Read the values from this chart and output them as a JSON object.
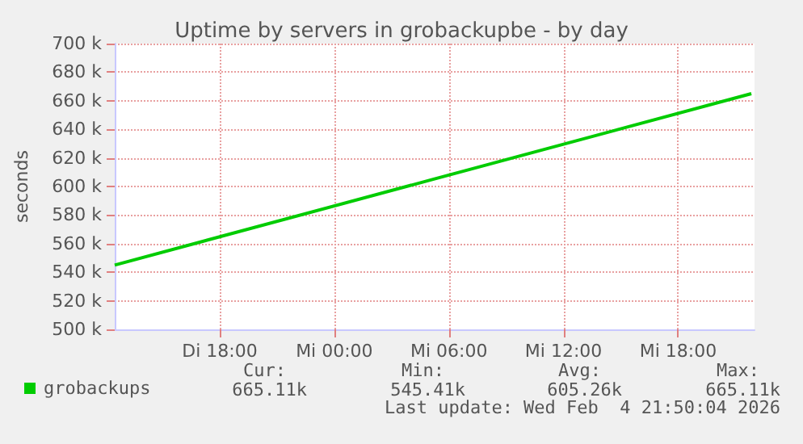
{
  "chart_data": {
    "type": "line",
    "title": "Uptime by servers in grobackupbe - by day",
    "ylabel": "seconds",
    "x": [
      "2026-02-03T12:30",
      "2026-02-04T05:10",
      "2026-02-04T21:50"
    ],
    "series": [
      {
        "name": "grobackups",
        "color": "#00cc00",
        "values": [
          545000,
          605000,
          665000
        ]
      }
    ],
    "xlim": [
      "2026-02-03T12:30",
      "2026-02-04T22:00"
    ],
    "xticks": [
      {
        "value": "2026-02-03T18:00",
        "label": "Di 18:00"
      },
      {
        "value": "2026-02-04T00:00",
        "label": "Mi 00:00"
      },
      {
        "value": "2026-02-04T06:00",
        "label": "Mi 06:00"
      },
      {
        "value": "2026-02-04T12:00",
        "label": "Mi 12:00"
      },
      {
        "value": "2026-02-04T18:00",
        "label": "Mi 18:00"
      }
    ],
    "ylim": [
      500000,
      700000
    ],
    "yticks": [
      {
        "value": 500000,
        "label": "500 k"
      },
      {
        "value": 520000,
        "label": "520 k"
      },
      {
        "value": 540000,
        "label": "540 k"
      },
      {
        "value": 560000,
        "label": "560 k"
      },
      {
        "value": 580000,
        "label": "580 k"
      },
      {
        "value": 600000,
        "label": "600 k"
      },
      {
        "value": 620000,
        "label": "620 k"
      },
      {
        "value": 640000,
        "label": "640 k"
      },
      {
        "value": 660000,
        "label": "660 k"
      },
      {
        "value": 680000,
        "label": "680 k"
      },
      {
        "value": 700000,
        "label": "700 k"
      }
    ],
    "grid": true,
    "legend": "bottom left",
    "marker": "none",
    "line_style": "solid",
    "annotations": [
      "Cur:",
      "665.11k",
      "Min:",
      "545.41k",
      "Avg:",
      "605.26k",
      "Max:",
      "665.11k",
      "Last update: Wed Feb  4 21:50:04 2026"
    ]
  }
}
